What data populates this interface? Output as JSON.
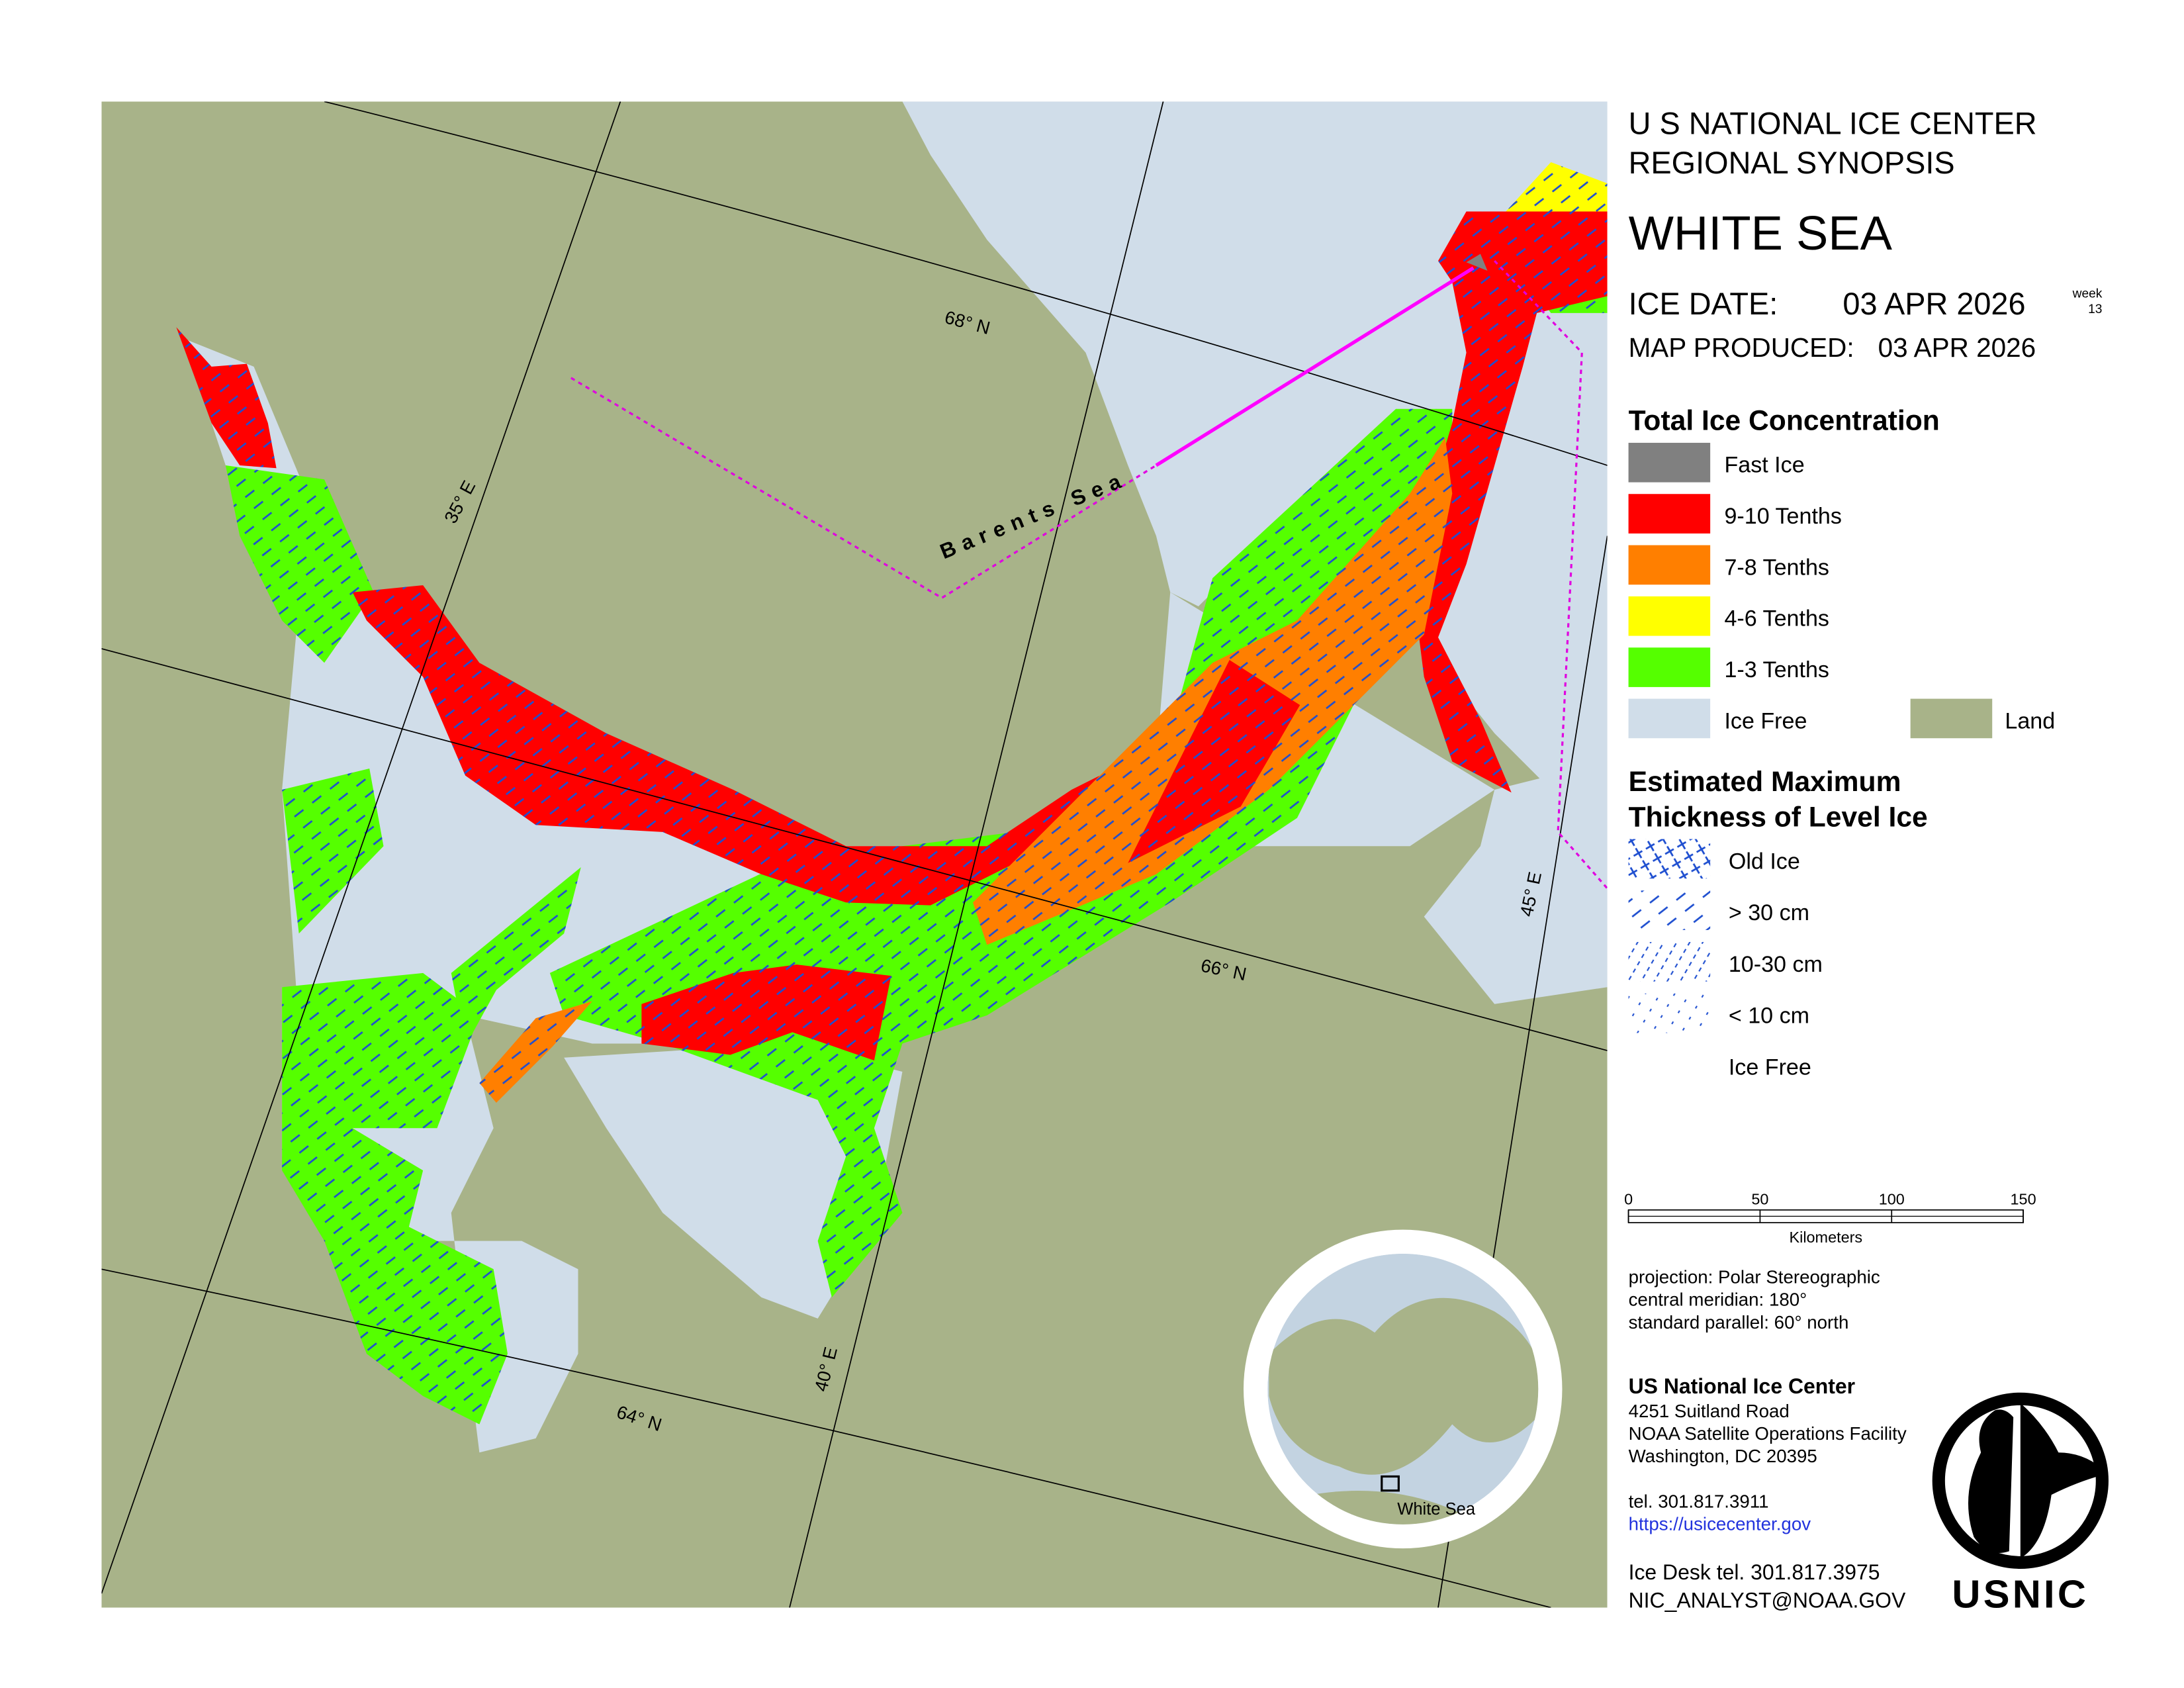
{
  "header": {
    "agency": "U S NATIONAL ICE CENTER",
    "product": "REGIONAL SYNOPSIS",
    "region": "WHITE SEA",
    "ice_date_label": "ICE DATE:",
    "ice_date": "03 APR 2026",
    "week_label": "week",
    "week": 13,
    "produced_label": "MAP PRODUCED:",
    "produced_date": "03 APR 2026"
  },
  "concentration_legend": {
    "title": "Total Ice Concentration",
    "items": [
      {
        "label": "Fast Ice",
        "color": "#808080"
      },
      {
        "label": "9-10 Tenths",
        "color": "#ff0000"
      },
      {
        "label": "7-8 Tenths",
        "color": "#ff7f00"
      },
      {
        "label": "4-6 Tenths",
        "color": "#ffff00"
      },
      {
        "label": "1-3 Tenths",
        "color": "#55ff00"
      },
      {
        "label": "Ice Free",
        "color": "#d0dde9"
      },
      {
        "label": "Land",
        "color": "#a8b389"
      }
    ]
  },
  "thickness_legend": {
    "title_lines": [
      "Estimated Maximum",
      "Thickness of Level Ice"
    ],
    "items": [
      "Old Ice",
      "> 30 cm",
      "10-30 cm",
      "< 10 cm",
      "Ice Free"
    ]
  },
  "scale_bar": {
    "ticks": [
      0,
      50,
      100,
      150
    ],
    "unit": "Kilometers"
  },
  "projection": [
    "projection: Polar Stereographic",
    "central meridian: 180°",
    "standard parallel:  60° north"
  ],
  "contact": {
    "name": "US National Ice Center",
    "address": [
      "4251 Suitland Road",
      "NOAA Satellite Operations Facility",
      "Washington, DC  20395"
    ],
    "phone": "tel. 301.817.3911",
    "url": "https://usicecenter.gov",
    "desk_phone": "Ice Desk tel. 301.817.3975",
    "email": "NIC_ANALYST@NOAA.GOV"
  },
  "logo": "USNIC",
  "map_labels": {
    "parallels": [
      "68° N",
      "66° N",
      "64° N"
    ],
    "meridians": [
      "35° E",
      "40° E",
      "45° E"
    ],
    "sea": "Barents Sea",
    "inset": "White Sea"
  }
}
